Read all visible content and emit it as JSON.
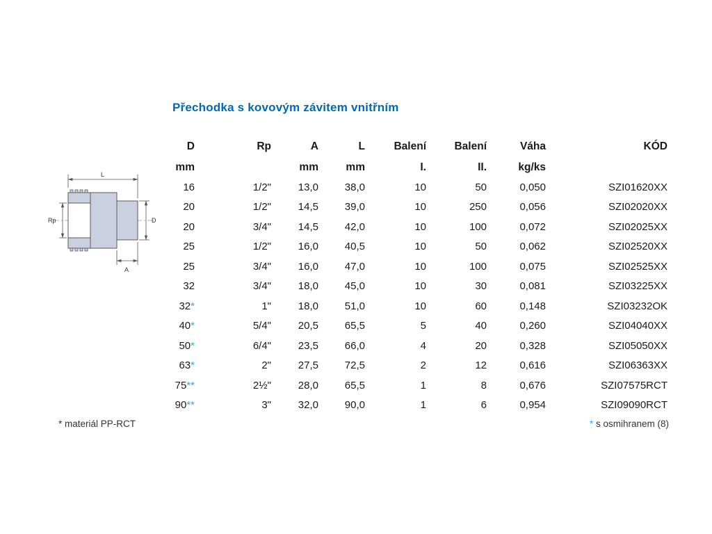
{
  "page": {
    "title": "Přechodka s kovovým závitem vnitřním"
  },
  "colors": {
    "title_blue": "#0069b4",
    "star_cyan": "#29abe2",
    "fitting_fill": "#cad0e0",
    "fitting_outline": "#5a5a5a"
  },
  "diagram": {
    "labels": {
      "length": "L",
      "thread": "Rp",
      "diameter": "D",
      "depth": "A"
    }
  },
  "table": {
    "head1": [
      "D",
      "Rp",
      "A",
      "L",
      "Balení",
      "Balení",
      "Váha",
      "KÓD"
    ],
    "head2": [
      "mm",
      "",
      "mm",
      "mm",
      "I.",
      "II.",
      "kg/ks",
      ""
    ],
    "rows": [
      {
        "d": "16",
        "star": "",
        "rp": "1/2\"",
        "a": "13,0",
        "l": "38,0",
        "bal1": "10",
        "bal2": "50",
        "vaha": "0,050",
        "kod": "SZI01620XX"
      },
      {
        "d": "20",
        "star": "",
        "rp": "1/2\"",
        "a": "14,5",
        "l": "39,0",
        "bal1": "10",
        "bal2": "250",
        "vaha": "0,056",
        "kod": "SZI02020XX"
      },
      {
        "d": "20",
        "star": "",
        "rp": "3/4\"",
        "a": "14,5",
        "l": "42,0",
        "bal1": "10",
        "bal2": "100",
        "vaha": "0,072",
        "kod": "SZI02025XX"
      },
      {
        "d": "25",
        "star": "",
        "rp": "1/2\"",
        "a": "16,0",
        "l": "40,5",
        "bal1": "10",
        "bal2": "50",
        "vaha": "0,062",
        "kod": "SZI02520XX"
      },
      {
        "d": "25",
        "star": "",
        "rp": "3/4\"",
        "a": "16,0",
        "l": "47,0",
        "bal1": "10",
        "bal2": "100",
        "vaha": "0,075",
        "kod": "SZI02525XX"
      },
      {
        "d": "32",
        "star": "",
        "rp": "3/4\"",
        "a": "18,0",
        "l": "45,0",
        "bal1": "10",
        "bal2": "30",
        "vaha": "0,081",
        "kod": "SZI03225XX"
      },
      {
        "d": "32",
        "star": "*",
        "rp": "1\"",
        "a": "18,0",
        "l": "51,0",
        "bal1": "10",
        "bal2": "60",
        "vaha": "0,148",
        "kod": "SZI03232OK"
      },
      {
        "d": "40",
        "star": "*",
        "rp": "5/4\"",
        "a": "20,5",
        "l": "65,5",
        "bal1": "5",
        "bal2": "40",
        "vaha": "0,260",
        "kod": "SZI04040XX"
      },
      {
        "d": "50",
        "star": "*",
        "rp": "6/4\"",
        "a": "23,5",
        "l": "66,0",
        "bal1": "4",
        "bal2": "20",
        "vaha": "0,328",
        "kod": "SZI05050XX"
      },
      {
        "d": "63",
        "star": "*",
        "rp": "2\"",
        "a": "27,5",
        "l": "72,5",
        "bal1": "2",
        "bal2": "12",
        "vaha": "0,616",
        "kod": "SZI06363XX"
      },
      {
        "d": "75",
        "star": "**",
        "rp": "2½\"",
        "a": "28,0",
        "l": "65,5",
        "bal1": "1",
        "bal2": "8",
        "vaha": "0,676",
        "kod": "SZI07575RCT"
      },
      {
        "d": "90",
        "star": "**",
        "rp": "3\"",
        "a": "32,0",
        "l": "90,0",
        "bal1": "1",
        "bal2": "6",
        "vaha": "0,954",
        "kod": "SZI09090RCT"
      }
    ]
  },
  "footnotes": {
    "left": "* materiál PP-RCT",
    "right_star": "*",
    "right_text": " s osmihranem (8)"
  }
}
